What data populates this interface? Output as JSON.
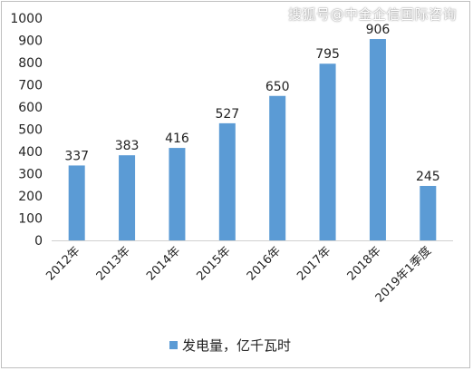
{
  "chart_data": {
    "type": "bar",
    "categories": [
      "2012年",
      "2013年",
      "2014年",
      "2015年",
      "2016年",
      "2017年",
      "2018年",
      "2019年1季度"
    ],
    "series": [
      {
        "name": "发电量，亿千瓦时",
        "values": [
          337,
          383,
          416,
          527,
          650,
          795,
          906,
          245
        ],
        "color": "#5b9bd5"
      }
    ],
    "ylim": [
      0,
      1000
    ],
    "yticks": [
      0,
      100,
      200,
      300,
      400,
      500,
      600,
      700,
      800,
      900,
      1000
    ],
    "data_labels": [
      "337",
      "383",
      "416",
      "527",
      "650",
      "795",
      "906",
      "245"
    ],
    "grid": false,
    "legend_position": "bottom"
  },
  "watermark": "搜狐号@中金企信国际咨询"
}
